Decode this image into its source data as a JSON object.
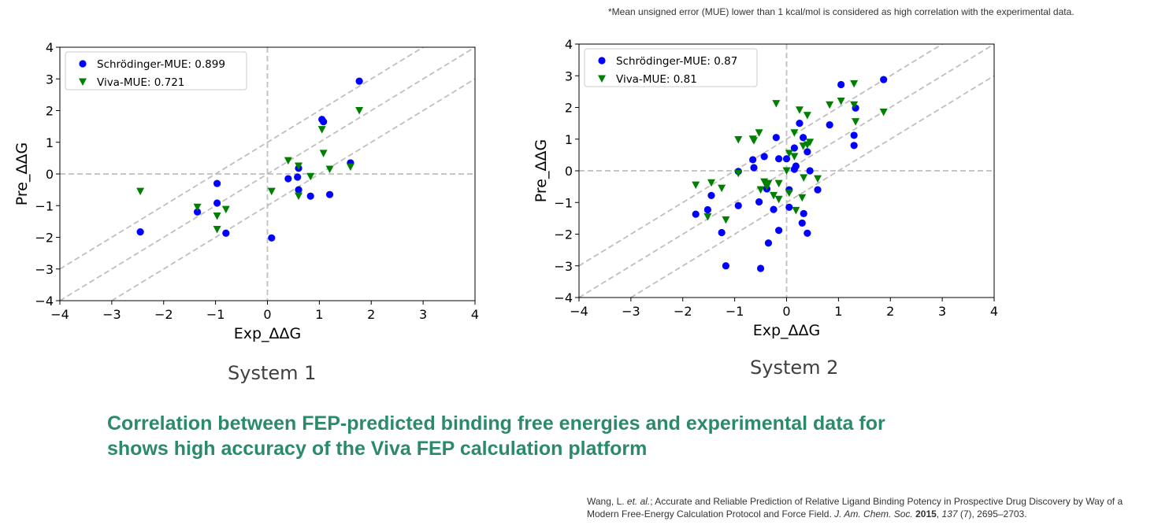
{
  "footnote": "*Mean unsigned error (MUE) lower than 1 kcal/mol is considered as high correlation with the experimental data.",
  "headline": {
    "line1": "Correlation between FEP-predicted binding free energies and experimental data for",
    "line2": "shows high accuracy of the Viva FEP calculation platform"
  },
  "reference": {
    "authors": "Wang, L. ",
    "etal": "et. al.",
    "title": "; Accurate and Reliable Prediction of Relative Ligand Binding Potency in Prospective Drug Discovery by Way of a Modern Free-Energy Calculation Protocol and Force Field. ",
    "journal": "J. Am. Chem. Soc.",
    "year": "2015",
    "volume": "137",
    "issue_pages": " (7), 2695–2703."
  },
  "colors": {
    "schrodinger": "#0000ff",
    "viva": "#008000",
    "guide": "#bfbfbf",
    "headline": "#2a8a6a"
  },
  "chart_data": [
    {
      "type": "scatter",
      "caption": "System 1",
      "xlabel": "Exp_ΔΔG",
      "ylabel": "Pre_ΔΔG",
      "xlim": [
        -4,
        4
      ],
      "ylim": [
        -4,
        4
      ],
      "xticks": [
        "−4",
        "−3",
        "−2",
        "−1",
        "0",
        "1",
        "2",
        "3",
        "4"
      ],
      "yticks": [
        "−4",
        "−3",
        "−2",
        "−1",
        "0",
        "1",
        "2",
        "3",
        "4"
      ],
      "legend_position": "top-left",
      "guides": "y=x and y=x±1 dashed, x=0 and y=0 dashed",
      "series": [
        {
          "name": "Schrödinger-MUE: 0.899",
          "marker": "circle",
          "points": [
            [
              -2.45,
              -1.83
            ],
            [
              -1.35,
              -1.2
            ],
            [
              -0.97,
              -0.3
            ],
            [
              -0.97,
              -0.92
            ],
            [
              -0.8,
              -1.87
            ],
            [
              0.08,
              -2.02
            ],
            [
              0.4,
              -0.15
            ],
            [
              0.58,
              -0.1
            ],
            [
              0.6,
              0.18
            ],
            [
              0.6,
              -0.5
            ],
            [
              0.83,
              -0.7
            ],
            [
              1.05,
              1.72
            ],
            [
              1.08,
              1.65
            ],
            [
              1.2,
              -0.65
            ],
            [
              1.6,
              0.35
            ],
            [
              1.77,
              2.93
            ]
          ]
        },
        {
          "name": "Viva-MUE: 0.721",
          "marker": "triangle-down",
          "points": [
            [
              -2.45,
              -0.55
            ],
            [
              -1.35,
              -1.05
            ],
            [
              -0.97,
              -1.33
            ],
            [
              -0.97,
              -1.75
            ],
            [
              -0.8,
              -1.12
            ],
            [
              0.08,
              -0.55
            ],
            [
              0.4,
              0.42
            ],
            [
              0.6,
              0.25
            ],
            [
              0.6,
              -0.7
            ],
            [
              0.83,
              -0.08
            ],
            [
              1.05,
              1.4
            ],
            [
              1.08,
              0.65
            ],
            [
              1.2,
              0.15
            ],
            [
              1.6,
              0.22
            ],
            [
              1.77,
              2.0
            ]
          ]
        }
      ]
    },
    {
      "type": "scatter",
      "caption": "System 2",
      "xlabel": "Exp_ΔΔG",
      "ylabel": "Pre_ΔΔG",
      "xlim": [
        -4,
        4
      ],
      "ylim": [
        -4,
        4
      ],
      "xticks": [
        "−4",
        "−3",
        "−2",
        "−1",
        "0",
        "1",
        "2",
        "3",
        "4"
      ],
      "yticks": [
        "−4",
        "−3",
        "−2",
        "−1",
        "0",
        "1",
        "2",
        "3",
        "4"
      ],
      "legend_position": "top-left",
      "guides": "y=x and y=x±1 dashed, x=0 and y=0 dashed",
      "series": [
        {
          "name": "Schrödinger-MUE: 0.87",
          "marker": "circle",
          "points": [
            [
              -1.75,
              -1.37
            ],
            [
              -1.52,
              -1.23
            ],
            [
              -1.45,
              -0.78
            ],
            [
              -1.25,
              -1.95
            ],
            [
              -1.17,
              -3.0
            ],
            [
              -0.93,
              -1.1
            ],
            [
              -0.93,
              -0.02
            ],
            [
              -0.65,
              0.35
            ],
            [
              -0.63,
              0.1
            ],
            [
              -0.53,
              -0.98
            ],
            [
              -0.5,
              -3.08
            ],
            [
              -0.43,
              0.45
            ],
            [
              -0.38,
              -0.57
            ],
            [
              -0.35,
              -2.28
            ],
            [
              -0.25,
              -1.22
            ],
            [
              -0.2,
              1.05
            ],
            [
              -0.15,
              -1.88
            ],
            [
              -0.15,
              0.38
            ],
            [
              0.0,
              0.38
            ],
            [
              0.05,
              -1.15
            ],
            [
              0.05,
              -0.6
            ],
            [
              0.15,
              0.05
            ],
            [
              0.15,
              0.72
            ],
            [
              0.18,
              0.15
            ],
            [
              0.25,
              1.5
            ],
            [
              0.3,
              -1.65
            ],
            [
              0.32,
              1.05
            ],
            [
              0.33,
              -1.35
            ],
            [
              0.4,
              0.6
            ],
            [
              0.4,
              -1.97
            ],
            [
              0.45,
              0.0
            ],
            [
              0.6,
              -0.6
            ],
            [
              0.83,
              1.45
            ],
            [
              1.05,
              2.72
            ],
            [
              1.3,
              0.8
            ],
            [
              1.3,
              1.12
            ],
            [
              1.33,
              1.98
            ],
            [
              1.87,
              2.88
            ]
          ]
        },
        {
          "name": "Viva-MUE: 0.81",
          "marker": "triangle-down",
          "points": [
            [
              -1.75,
              -0.45
            ],
            [
              -1.52,
              -1.45
            ],
            [
              -1.45,
              -0.38
            ],
            [
              -1.25,
              -0.55
            ],
            [
              -1.17,
              -1.55
            ],
            [
              -0.93,
              -0.08
            ],
            [
              -0.93,
              0.98
            ],
            [
              -0.65,
              1.0
            ],
            [
              -0.63,
              0.95
            ],
            [
              -0.53,
              1.2
            ],
            [
              -0.5,
              -0.6
            ],
            [
              -0.43,
              -0.35
            ],
            [
              -0.38,
              -0.5
            ],
            [
              -0.35,
              -0.4
            ],
            [
              -0.25,
              -0.78
            ],
            [
              -0.2,
              2.12
            ],
            [
              -0.15,
              -0.4
            ],
            [
              -0.15,
              -0.9
            ],
            [
              0.0,
              0.0
            ],
            [
              0.05,
              0.55
            ],
            [
              0.05,
              -0.7
            ],
            [
              0.15,
              0.45
            ],
            [
              0.15,
              1.2
            ],
            [
              0.18,
              -1.25
            ],
            [
              0.25,
              1.92
            ],
            [
              0.3,
              -0.85
            ],
            [
              0.32,
              0.78
            ],
            [
              0.33,
              -0.22
            ],
            [
              0.4,
              0.82
            ],
            [
              0.4,
              1.75
            ],
            [
              0.45,
              0.9
            ],
            [
              0.6,
              -0.25
            ],
            [
              0.83,
              2.08
            ],
            [
              1.05,
              2.2
            ],
            [
              1.3,
              2.75
            ],
            [
              1.3,
              2.08
            ],
            [
              1.33,
              1.55
            ],
            [
              1.87,
              1.85
            ]
          ]
        }
      ]
    }
  ]
}
